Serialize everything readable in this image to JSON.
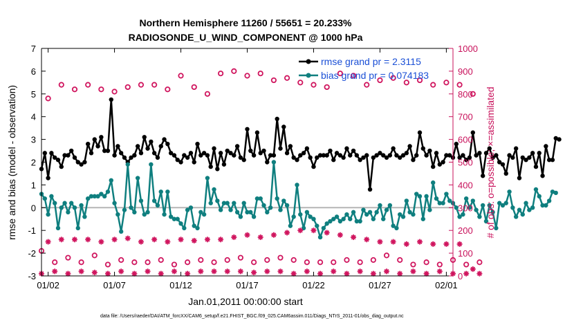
{
  "chart_data": {
    "type": "line",
    "title": "Northern Hemisphere 11260 / 55651 = 20.233%",
    "subtitle": "RADIOSONDE_U_WIND_COMPONENT @ 1000 hPa",
    "xlabel": "Jan.01,2011 00:00:00 start",
    "ylabel": "rmse and bias (model - observation)",
    "ylabel_right": "# of obs: o=possible; ×=assimilated",
    "footnote": "data file: /Users/raeder/DAI/ATM_forcXX/CAM6_setup/f.e21.FHIST_BGC.f09_025.CAM6assim.011/Diags_NTrS_2011-01/obs_diag_output.nc",
    "x_ticks": [
      "01/02",
      "01/07",
      "01/12",
      "01/17",
      "01/22",
      "01/27",
      "02/01"
    ],
    "x_tick_days": [
      1,
      6,
      11,
      16,
      21,
      26,
      31
    ],
    "xlim_days": [
      0.5,
      31.5
    ],
    "ylim": [
      -3,
      7
    ],
    "y_ticks": [
      "-3",
      "-2",
      "-1",
      "0",
      "1",
      "2",
      "3",
      "4",
      "5",
      "6",
      "7"
    ],
    "ylim_right": [
      0,
      1000
    ],
    "y_ticks_right": [
      "0",
      "100",
      "200",
      "300",
      "400",
      "500",
      "600",
      "700",
      "800",
      "900",
      "1000"
    ],
    "zero_line": true,
    "legend": {
      "position": "top-right"
    },
    "series": [
      {
        "name": "rmse grand pr = 2.3115",
        "axis": "left",
        "color": "#000000",
        "marker": "filled-circle",
        "x_start_day": 0.5,
        "x_step_day": 0.25,
        "values": [
          1.7,
          2.4,
          1.3,
          2.4,
          2.2,
          2.1,
          1.8,
          2.3,
          2.3,
          2.5,
          2.2,
          2.0,
          1.9,
          2.0,
          2.8,
          2.4,
          3.0,
          2.7,
          3.1,
          2.5,
          2.5,
          4.75,
          2.3,
          2.7,
          2.4,
          2.2,
          2.0,
          2.2,
          2.3,
          2.7,
          2.4,
          3.1,
          2.6,
          2.9,
          2.4,
          2.2,
          2.7,
          3.0,
          2.8,
          2.4,
          2.3,
          2.1,
          2.0,
          2.3,
          2.2,
          2.4,
          2.0,
          2.8,
          2.3,
          2.4,
          2.3,
          1.8,
          2.6,
          1.7,
          2.4,
          1.9,
          2.5,
          2.4,
          2.3,
          2.7,
          2.2,
          2.1,
          3.45,
          2.5,
          2.3,
          3.3,
          2.4,
          2.5,
          2.0,
          2.3,
          2.3,
          3.9,
          2.6,
          3.55,
          2.4,
          2.7,
          2.2,
          2.1,
          2.3,
          2.4,
          2.6,
          2.2,
          1.8,
          2.2,
          2.3,
          2.3,
          2.3,
          2.5,
          2.1,
          2.4,
          2.3,
          2.2,
          2.6,
          2.3,
          2.5,
          2.3,
          2.1,
          2.2,
          2.3,
          0.8,
          2.2,
          2.3,
          2.4,
          2.3,
          2.2,
          2.3,
          2.6,
          2.3,
          2.2,
          2.3,
          2.4,
          2.7,
          2.1,
          2.3,
          3.3,
          2.6,
          2.3,
          2.5,
          1.8,
          2.4,
          1.9,
          2.0,
          2.3,
          2.3,
          2.2,
          2.8,
          2.2,
          2.3,
          2.1,
          2.2,
          3.3,
          2.3,
          2.4,
          1.4,
          2.4,
          2.6,
          2.2,
          2.3,
          2.0,
          1.9,
          1.5,
          2.3,
          2.2,
          2.6,
          1.3,
          2.2,
          2.1,
          2.2,
          2.4,
          1.8,
          2.4,
          1.4,
          2.7,
          2.1,
          2.1,
          3.05,
          3.0
        ]
      },
      {
        "name": "bias grand pr = 0.074183",
        "axis": "left",
        "color": "#0f7f7f",
        "marker": "filled-circle",
        "x_start_day": 0.5,
        "x_step_day": 0.25,
        "values": [
          0.6,
          0.4,
          -0.3,
          0.5,
          0.2,
          -0.9,
          0.0,
          0.2,
          -0.2,
          0.2,
          0.0,
          -0.9,
          0.1,
          -0.4,
          0.4,
          0.5,
          0.5,
          0.5,
          0.6,
          0.5,
          0.7,
          1.2,
          0.2,
          -0.3,
          -1.05,
          -0.1,
          1.9,
          0.0,
          -0.2,
          1.3,
          0.3,
          -0.3,
          -0.2,
          1.9,
          0.3,
          0.1,
          0.7,
          -0.3,
          0.7,
          -0.4,
          -0.5,
          -0.5,
          -0.7,
          -0.9,
          -0.1,
          0.0,
          -0.8,
          -0.9,
          -0.2,
          -0.3,
          1.3,
          0.2,
          0.8,
          0.3,
          -0.1,
          0.2,
          0.2,
          -0.1,
          0.2,
          -0.2,
          -0.4,
          0.2,
          -0.2,
          -0.2,
          -0.4,
          0.4,
          0.4,
          0.1,
          -0.2,
          0.0,
          2.0,
          0.4,
          -0.1,
          0.3,
          0.1,
          -0.8,
          -0.4,
          1.0,
          -0.3,
          -0.9,
          -0.2,
          -0.4,
          -0.5,
          -0.8,
          -1.3,
          -0.9,
          -0.7,
          -0.6,
          -0.5,
          -0.4,
          -0.6,
          -0.5,
          -0.3,
          -0.5,
          -0.2,
          -0.6,
          -0.6,
          -0.1,
          -0.3,
          -0.2,
          -0.5,
          -0.2,
          0.1,
          -0.5,
          -0.1,
          0.1,
          -0.8,
          -0.9,
          -0.3,
          -0.4,
          0.3,
          -0.2,
          -0.3,
          0.6,
          0.5,
          -0.5,
          0.5,
          -0.1,
          1.1,
          0.4,
          0.2,
          0.2,
          0.6,
          0.3,
          0.2,
          0.0,
          -0.4,
          -0.3,
          0.4,
          0.0,
          0.3,
          -0.1,
          -0.4,
          0.1,
          -0.6,
          0.1,
          -0.2,
          -0.9,
          0.2,
          0.1,
          0.2,
          0.7,
          0.0,
          -0.4,
          -0.1,
          -0.3,
          0.2,
          -0.1,
          0.0,
          0.8,
          0.5,
          0.1,
          0.1,
          0.3,
          0.7,
          0.65
        ]
      },
      {
        "name": "possible",
        "axis": "right",
        "color": "#d0155e",
        "marker": "open-circle",
        "x_start_day": 0.5,
        "x_step_day": 0.5,
        "values": [
          110,
          780,
          60,
          840,
          80,
          820,
          60,
          840,
          90,
          820,
          50,
          810,
          70,
          830,
          60,
          840,
          60,
          840,
          70,
          820,
          50,
          880,
          60,
          830,
          70,
          800,
          60,
          890,
          70,
          900,
          80,
          880,
          60,
          890,
          70,
          860,
          80,
          870,
          70,
          850,
          60,
          840,
          60,
          830,
          60,
          890,
          70,
          880,
          60,
          840,
          70,
          860,
          90,
          870,
          70,
          850,
          50,
          860,
          60,
          840,
          50,
          850,
          70,
          840,
          50,
          800,
          60
        ]
      },
      {
        "name": "assimilated",
        "axis": "right",
        "color": "#d0155e",
        "marker": "asterisk",
        "x_start_day": 0.5,
        "x_step_day": 0.5,
        "values": [
          10,
          150,
          20,
          160,
          10,
          160,
          20,
          160,
          15,
          150,
          10,
          160,
          20,
          165,
          10,
          150,
          20,
          160,
          10,
          150,
          20,
          160,
          10,
          155,
          20,
          160,
          20,
          160,
          20,
          170,
          20,
          180,
          15,
          170,
          20,
          180,
          20,
          190,
          10,
          200,
          20,
          200,
          10,
          190,
          20,
          180,
          10,
          170,
          20,
          160,
          10,
          150,
          20,
          150,
          10,
          140,
          20,
          150,
          10,
          140,
          20,
          140,
          10,
          140,
          10,
          30,
          10
        ]
      }
    ]
  }
}
